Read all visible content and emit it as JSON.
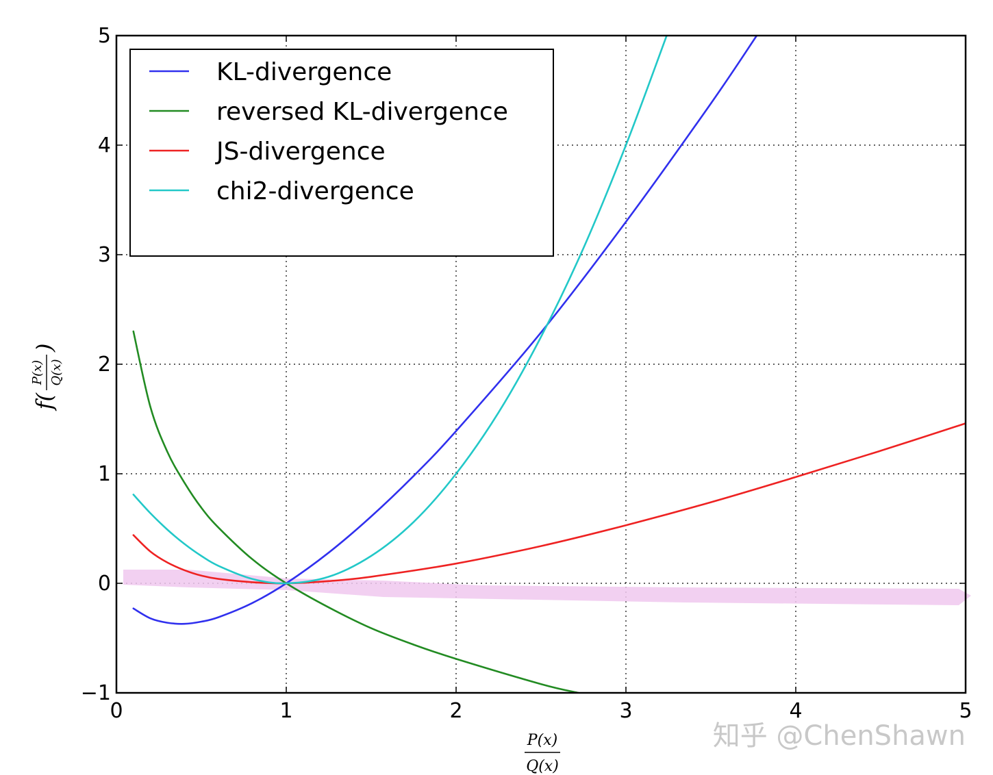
{
  "chart_data": {
    "type": "line",
    "title": "",
    "xlabel": {
      "numerator": "P(x)",
      "denominator": "Q(x)"
    },
    "ylabel": {
      "prefix": "f(",
      "numerator": "P(x)",
      "denominator": "Q(x)",
      "suffix": ")"
    },
    "xlim": [
      0,
      5
    ],
    "ylim": [
      -1,
      5
    ],
    "xticks": [
      0,
      1,
      2,
      3,
      4,
      5
    ],
    "yticks": [
      -1,
      0,
      1,
      2,
      3,
      4,
      5
    ],
    "xtick_labels": [
      "0",
      "1",
      "2",
      "3",
      "4",
      "5"
    ],
    "ytick_labels": [
      "−1",
      "0",
      "1",
      "2",
      "3",
      "4",
      "5"
    ],
    "grid": true,
    "legend_position": "upper-left",
    "series": [
      {
        "name": "KL-divergence",
        "color": "#3030ee",
        "x": [
          0.1,
          0.2,
          0.3,
          0.4,
          0.5,
          0.6,
          0.8,
          1.0,
          1.25,
          1.5,
          1.75,
          2.0,
          2.5,
          3.0,
          3.5,
          3.77
        ],
        "y": [
          -0.23,
          -0.32,
          -0.36,
          -0.37,
          -0.35,
          -0.31,
          -0.18,
          0.0,
          0.28,
          0.61,
          0.98,
          1.39,
          2.29,
          3.3,
          4.38,
          5.0
        ]
      },
      {
        "name": "reversed KL-divergence",
        "color": "#228b22",
        "x": [
          0.1,
          0.2,
          0.3,
          0.4,
          0.5,
          0.6,
          0.8,
          1.0,
          1.25,
          1.5,
          1.75,
          2.0,
          2.5,
          2.72
        ],
        "y": [
          2.3,
          1.61,
          1.2,
          0.92,
          0.69,
          0.51,
          0.22,
          0.0,
          -0.22,
          -0.41,
          -0.56,
          -0.69,
          -0.92,
          -1.0
        ]
      },
      {
        "name": "JS-divergence",
        "color": "#ee2222",
        "x": [
          0.1,
          0.2,
          0.3,
          0.4,
          0.5,
          0.6,
          0.8,
          1.0,
          1.25,
          1.5,
          2.0,
          2.5,
          3.0,
          3.5,
          4.0,
          4.5,
          5.0
        ],
        "y": [
          0.44,
          0.29,
          0.19,
          0.12,
          0.07,
          0.04,
          0.01,
          0.0,
          0.02,
          0.06,
          0.18,
          0.34,
          0.53,
          0.74,
          0.97,
          1.21,
          1.46
        ]
      },
      {
        "name": "chi2-divergence",
        "color": "#22c8c8",
        "x": [
          0.1,
          0.2,
          0.3,
          0.4,
          0.5,
          0.6,
          0.8,
          1.0,
          1.25,
          1.5,
          1.75,
          2.0,
          2.25,
          2.5,
          2.75,
          3.0,
          3.24
        ],
        "y": [
          0.81,
          0.64,
          0.49,
          0.36,
          0.25,
          0.16,
          0.04,
          0.0,
          0.06,
          0.25,
          0.56,
          1.0,
          1.56,
          2.25,
          3.06,
          4.0,
          5.0
        ]
      }
    ]
  },
  "watermark": {
    "text": "知乎 @ChenShawn"
  }
}
